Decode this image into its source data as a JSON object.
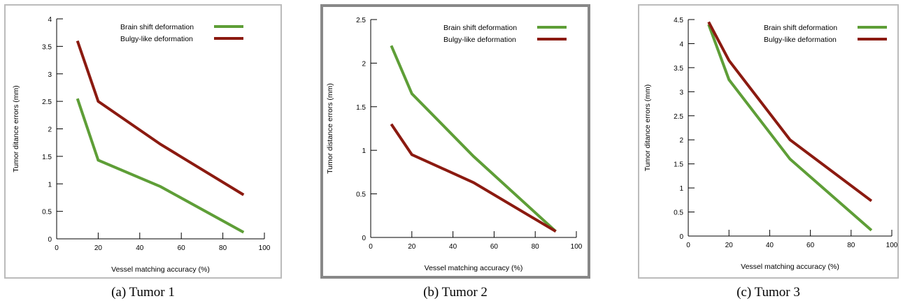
{
  "figure": {
    "colors": {
      "frame": "#888888",
      "axis": "#000000"
    },
    "panels": [
      {
        "caption": "(a) Tumor 1",
        "chart_data": {
          "type": "line",
          "xlabel": "Vessel matching accuracy (%)",
          "ylabel": "Tumor ditance errors (mm)",
          "xlim": [
            0,
            100
          ],
          "ylim": [
            0,
            4
          ],
          "xticks": [
            0,
            20,
            40,
            60,
            80,
            100
          ],
          "xtick_labels": [
            "0",
            "20",
            "40",
            "60",
            "80",
            "100"
          ],
          "yticks": [
            0,
            0.5,
            1,
            1.5,
            2,
            2.5,
            3,
            3.5,
            4
          ],
          "ytick_labels": [
            "0",
            "0.5",
            "1",
            "1.5",
            "2",
            "2.5",
            "3",
            "3.5",
            "4"
          ],
          "grid": false,
          "legend": "top-right",
          "series": [
            {
              "name": "Brain shift deformation",
              "color": "#5e9e37",
              "x": [
                10,
                20,
                50,
                90
              ],
              "y": [
                2.55,
                1.43,
                0.95,
                0.12
              ]
            },
            {
              "name": "Bulgy-like deformation",
              "color": "#8b1a10",
              "x": [
                10,
                20,
                50,
                90
              ],
              "y": [
                3.6,
                2.5,
                1.72,
                0.8
              ]
            }
          ]
        }
      },
      {
        "caption": "(b) Tumor 2",
        "chart_data": {
          "type": "line",
          "xlabel": "Vessel matching accuracy (%)",
          "ylabel": "Tumor distance errors (mm)",
          "xlim": [
            0,
            100
          ],
          "ylim": [
            0,
            2.5
          ],
          "xticks": [
            0,
            20,
            40,
            60,
            80,
            100
          ],
          "xtick_labels": [
            "0",
            "20",
            "40",
            "60",
            "80",
            "100"
          ],
          "yticks": [
            0,
            0.5,
            1,
            1.5,
            2,
            2.5
          ],
          "ytick_labels": [
            "0",
            "0.5",
            "1",
            "1.5",
            "2",
            "2.5"
          ],
          "grid": false,
          "legend": "top-right",
          "series": [
            {
              "name": "Brain shift deformation",
              "color": "#5e9e37",
              "x": [
                10,
                20,
                50,
                90
              ],
              "y": [
                2.2,
                1.65,
                0.93,
                0.07
              ]
            },
            {
              "name": "Bulgy-like deformation",
              "color": "#8b1a10",
              "x": [
                10,
                20,
                50,
                90
              ],
              "y": [
                1.3,
                0.95,
                0.63,
                0.07
              ]
            }
          ]
        }
      },
      {
        "caption": "(c) Tumor 3",
        "chart_data": {
          "type": "line",
          "xlabel": "Vessel matching accuracy (%)",
          "ylabel": "Tumor ditance errors (mm)",
          "xlim": [
            0,
            100
          ],
          "ylim": [
            0,
            4.5
          ],
          "xticks": [
            0,
            20,
            40,
            60,
            80,
            100
          ],
          "xtick_labels": [
            "0",
            "20",
            "40",
            "60",
            "80",
            "100"
          ],
          "yticks": [
            0,
            0.5,
            1,
            1.5,
            2,
            2.5,
            3,
            3.5,
            4,
            4.5
          ],
          "ytick_labels": [
            "0",
            "0.5",
            "1",
            "1.5",
            "2",
            "2.5",
            "3",
            "3.5",
            "4",
            "4.5"
          ],
          "grid": false,
          "legend": "top-right",
          "series": [
            {
              "name": "Brain shift deformation",
              "color": "#5e9e37",
              "x": [
                10,
                20,
                50,
                90
              ],
              "y": [
                4.4,
                3.25,
                1.6,
                0.12
              ]
            },
            {
              "name": "Bulgy-like deformation",
              "color": "#8b1a10",
              "x": [
                10,
                20,
                50,
                90
              ],
              "y": [
                4.45,
                3.65,
                2.0,
                0.73
              ]
            }
          ]
        }
      }
    ]
  }
}
